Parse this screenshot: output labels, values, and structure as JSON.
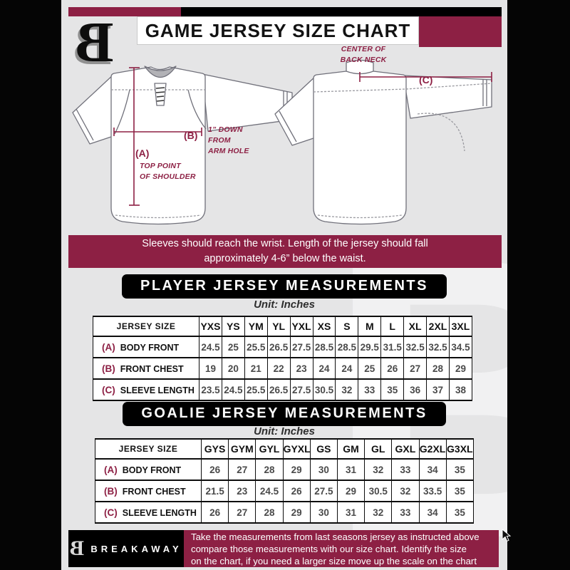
{
  "header": {
    "title": "GAME JERSEY SIZE CHART",
    "logo_letter": "B"
  },
  "diagram": {
    "label_a": "(A)",
    "label_b": "(B)",
    "label_c": "(C)",
    "a_note": [
      "TOP POINT",
      "OF SHOULDER"
    ],
    "b_note": [
      "1” DOWN",
      "FROM",
      "ARM HOLE"
    ],
    "back_neck_note": [
      "CENTER OF",
      "BACK NECK"
    ]
  },
  "notice": {
    "lines": [
      "Sleeves should reach the wrist. Length of the jersey should fall",
      "approximately 4-6” below the waist."
    ]
  },
  "player": {
    "title": "PLAYER JERSEY MEASUREMENTS",
    "unit": "Unit: Inches",
    "corner_label": "JERSEY SIZE",
    "sizes": [
      "YXS",
      "YS",
      "YM",
      "YL",
      "YXL",
      "XS",
      "S",
      "M",
      "L",
      "XL",
      "2XL",
      "3XL"
    ],
    "rows": [
      {
        "key": "(A)",
        "label": "BODY FRONT",
        "values": [
          "24.5",
          "25",
          "25.5",
          "26.5",
          "27.5",
          "28.5",
          "28.5",
          "29.5",
          "31.5",
          "32.5",
          "32.5",
          "34.5"
        ]
      },
      {
        "key": "(B)",
        "label": "FRONT CHEST",
        "values": [
          "19",
          "20",
          "21",
          "22",
          "23",
          "24",
          "24",
          "25",
          "26",
          "27",
          "28",
          "29"
        ]
      },
      {
        "key": "(C)",
        "label": "SLEEVE LENGTH",
        "values": [
          "23.5",
          "24.5",
          "25.5",
          "26.5",
          "27.5",
          "30.5",
          "32",
          "33",
          "35",
          "36",
          "37",
          "38"
        ]
      }
    ]
  },
  "goalie": {
    "title": "GOALIE JERSEY MEASUREMENTS",
    "unit": "Unit: Inches",
    "corner_label": "JERSEY SIZE",
    "sizes": [
      "GYS",
      "GYM",
      "GYL",
      "GYXL",
      "GS",
      "GM",
      "GL",
      "GXL",
      "G2XL",
      "G3XL"
    ],
    "rows": [
      {
        "key": "(A)",
        "label": "BODY FRONT",
        "values": [
          "26",
          "27",
          "28",
          "29",
          "30",
          "31",
          "32",
          "33",
          "34",
          "35"
        ]
      },
      {
        "key": "(B)",
        "label": "FRONT CHEST",
        "values": [
          "21.5",
          "23",
          "24.5",
          "26",
          "27.5",
          "29",
          "30.5",
          "32",
          "33.5",
          "35"
        ]
      },
      {
        "key": "(C)",
        "label": "SLEEVE LENGTH",
        "values": [
          "26",
          "27",
          "28",
          "29",
          "30",
          "31",
          "32",
          "33",
          "34",
          "35"
        ]
      }
    ]
  },
  "footer": {
    "brand": "BREAKAWAY",
    "logo_letter": "B",
    "lines": [
      "Take the measurements from last seasons jersey as instructed above",
      "compare those measurements  with our size chart. Identify the size",
      "on the chart, if you need a larger size move up the scale on the chart"
    ]
  },
  "watermark_letter": "B",
  "colors": {
    "maroon": "#8d2044",
    "black": "#000000",
    "page_background": "#e5e5e6"
  }
}
